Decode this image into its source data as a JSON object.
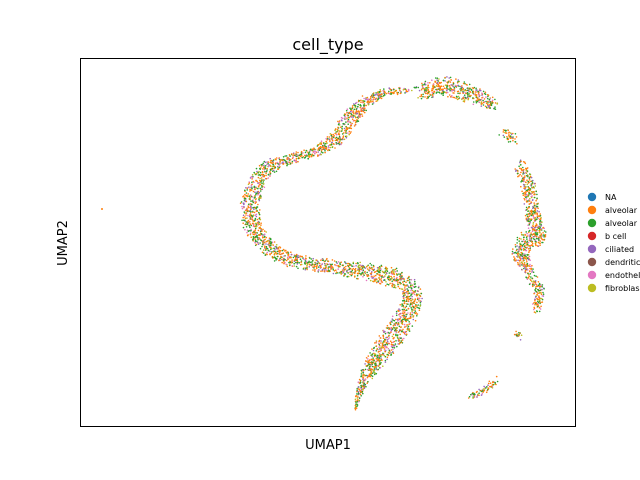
{
  "chart_data": {
    "type": "scatter",
    "title": "cell_type",
    "xlabel": "UMAP1",
    "ylabel": "UMAP2",
    "grid": false,
    "legend_placement": "right",
    "legend": [
      {
        "label": "NA",
        "color": "#1f77b4"
      },
      {
        "label": "alveolar",
        "color": "#ff7f0e"
      },
      {
        "label": "alveolar",
        "color": "#2ca02c"
      },
      {
        "label": "b cell",
        "color": "#d62728"
      },
      {
        "label": "ciliated",
        "color": "#9467bd"
      },
      {
        "label": "dendritic",
        "color": "#8c564b"
      },
      {
        "label": "endothel",
        "color": "#e377c2"
      },
      {
        "label": "fibroblas",
        "color": "#bcbd22"
      }
    ],
    "dominant_colors": [
      "#ff7f0e",
      "#2ca02c",
      "#9467bd",
      "#e377c2",
      "#bcbd22"
    ]
  }
}
